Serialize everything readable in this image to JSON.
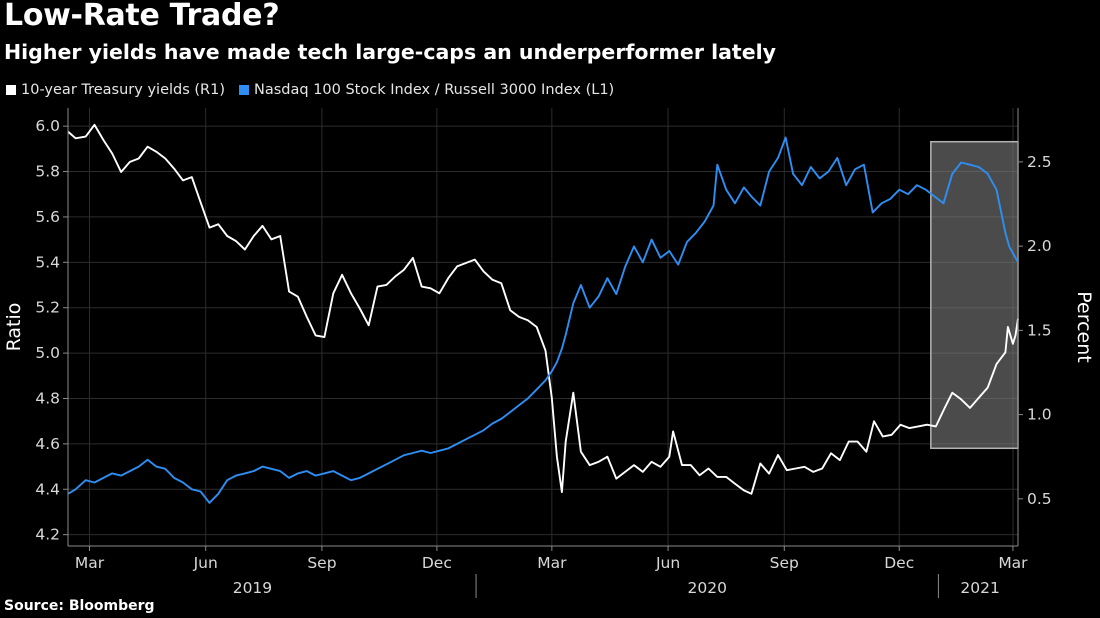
{
  "header": {
    "title": "Low-Rate Trade?",
    "subtitle": "Higher yields have made tech large-caps an underperformer lately"
  },
  "legend": [
    {
      "label": "10-year Treasury yields (R1)",
      "color": "#ffffff"
    },
    {
      "label": "Nasdaq 100 Stock Index / Russell 3000 Index (L1)",
      "color": "#2e8ef2"
    }
  ],
  "footer": {
    "source": "Source: Bloomberg"
  },
  "chart_data": {
    "type": "line",
    "x_tick_labels": [
      "Mar",
      "Jun",
      "Sep",
      "Dec",
      "Mar",
      "Jun",
      "Sep",
      "Dec",
      "Mar"
    ],
    "x_tick_dates": [
      "2019-03-01",
      "2019-06-01",
      "2019-09-01",
      "2019-12-01",
      "2020-03-01",
      "2020-06-01",
      "2020-09-01",
      "2020-12-01",
      "2021-03-01"
    ],
    "year_labels": [
      "2019",
      "2020",
      "2021"
    ],
    "xlim": [
      "2019-02-12",
      "2021-03-05"
    ],
    "ylabel_left": "Ratio",
    "ylabel_right": "Percent",
    "y_left_ticks": [
      4.2,
      4.4,
      4.6,
      4.8,
      5.0,
      5.2,
      5.4,
      5.6,
      5.8,
      6.0
    ],
    "y_left_lim": [
      4.15,
      6.08
    ],
    "y_right_ticks": [
      0.5,
      1.0,
      1.5,
      2.0,
      2.5
    ],
    "y_right_lim": [
      0.22,
      2.82
    ],
    "highlight": {
      "x_start": "2020-12-26",
      "x_end": "2021-03-05",
      "y_right_start": 0.8,
      "y_right_end": 2.62
    },
    "series": [
      {
        "name": "10-year Treasury yields (R1)",
        "axis": "right",
        "color": "#ffffff",
        "points": [
          [
            "2019-02-12",
            2.68
          ],
          [
            "2019-02-18",
            2.64
          ],
          [
            "2019-02-26",
            2.65
          ],
          [
            "2019-03-05",
            2.72
          ],
          [
            "2019-03-12",
            2.63
          ],
          [
            "2019-03-19",
            2.55
          ],
          [
            "2019-03-26",
            2.44
          ],
          [
            "2019-04-02",
            2.5
          ],
          [
            "2019-04-09",
            2.52
          ],
          [
            "2019-04-16",
            2.59
          ],
          [
            "2019-04-23",
            2.56
          ],
          [
            "2019-04-30",
            2.52
          ],
          [
            "2019-05-07",
            2.46
          ],
          [
            "2019-05-14",
            2.39
          ],
          [
            "2019-05-21",
            2.41
          ],
          [
            "2019-05-28",
            2.26
          ],
          [
            "2019-06-04",
            2.11
          ],
          [
            "2019-06-11",
            2.13
          ],
          [
            "2019-06-18",
            2.06
          ],
          [
            "2019-06-25",
            2.03
          ],
          [
            "2019-07-02",
            1.98
          ],
          [
            "2019-07-09",
            2.06
          ],
          [
            "2019-07-16",
            2.12
          ],
          [
            "2019-07-23",
            2.04
          ],
          [
            "2019-07-30",
            2.06
          ],
          [
            "2019-08-06",
            1.73
          ],
          [
            "2019-08-13",
            1.7
          ],
          [
            "2019-08-20",
            1.58
          ],
          [
            "2019-08-27",
            1.47
          ],
          [
            "2019-09-03",
            1.46
          ],
          [
            "2019-09-10",
            1.72
          ],
          [
            "2019-09-17",
            1.83
          ],
          [
            "2019-09-24",
            1.72
          ],
          [
            "2019-10-01",
            1.63
          ],
          [
            "2019-10-08",
            1.53
          ],
          [
            "2019-10-15",
            1.76
          ],
          [
            "2019-10-22",
            1.77
          ],
          [
            "2019-10-29",
            1.82
          ],
          [
            "2019-11-05",
            1.86
          ],
          [
            "2019-11-12",
            1.93
          ],
          [
            "2019-11-19",
            1.76
          ],
          [
            "2019-11-26",
            1.75
          ],
          [
            "2019-12-03",
            1.72
          ],
          [
            "2019-12-10",
            1.81
          ],
          [
            "2019-12-17",
            1.88
          ],
          [
            "2019-12-24",
            1.9
          ],
          [
            "2019-12-31",
            1.92
          ],
          [
            "2020-01-07",
            1.85
          ],
          [
            "2020-01-14",
            1.8
          ],
          [
            "2020-01-21",
            1.78
          ],
          [
            "2020-01-28",
            1.62
          ],
          [
            "2020-02-04",
            1.58
          ],
          [
            "2020-02-11",
            1.56
          ],
          [
            "2020-02-18",
            1.52
          ],
          [
            "2020-02-25",
            1.38
          ],
          [
            "2020-03-01",
            1.1
          ],
          [
            "2020-03-05",
            0.75
          ],
          [
            "2020-03-09",
            0.54
          ],
          [
            "2020-03-12",
            0.84
          ],
          [
            "2020-03-18",
            1.13
          ],
          [
            "2020-03-24",
            0.78
          ],
          [
            "2020-03-31",
            0.7
          ],
          [
            "2020-04-07",
            0.72
          ],
          [
            "2020-04-14",
            0.75
          ],
          [
            "2020-04-21",
            0.62
          ],
          [
            "2020-04-28",
            0.66
          ],
          [
            "2020-05-05",
            0.7
          ],
          [
            "2020-05-12",
            0.66
          ],
          [
            "2020-05-19",
            0.72
          ],
          [
            "2020-05-26",
            0.69
          ],
          [
            "2020-06-02",
            0.75
          ],
          [
            "2020-06-05",
            0.9
          ],
          [
            "2020-06-12",
            0.7
          ],
          [
            "2020-06-19",
            0.7
          ],
          [
            "2020-06-26",
            0.64
          ],
          [
            "2020-07-03",
            0.68
          ],
          [
            "2020-07-10",
            0.63
          ],
          [
            "2020-07-17",
            0.63
          ],
          [
            "2020-07-24",
            0.59
          ],
          [
            "2020-07-31",
            0.55
          ],
          [
            "2020-08-06",
            0.53
          ],
          [
            "2020-08-13",
            0.71
          ],
          [
            "2020-08-20",
            0.65
          ],
          [
            "2020-08-27",
            0.76
          ],
          [
            "2020-09-03",
            0.67
          ],
          [
            "2020-09-10",
            0.68
          ],
          [
            "2020-09-17",
            0.69
          ],
          [
            "2020-09-24",
            0.66
          ],
          [
            "2020-10-01",
            0.68
          ],
          [
            "2020-10-08",
            0.77
          ],
          [
            "2020-10-15",
            0.73
          ],
          [
            "2020-10-22",
            0.84
          ],
          [
            "2020-10-29",
            0.84
          ],
          [
            "2020-11-05",
            0.78
          ],
          [
            "2020-11-11",
            0.96
          ],
          [
            "2020-11-18",
            0.87
          ],
          [
            "2020-11-25",
            0.88
          ],
          [
            "2020-12-02",
            0.94
          ],
          [
            "2020-12-09",
            0.92
          ],
          [
            "2020-12-16",
            0.93
          ],
          [
            "2020-12-23",
            0.94
          ],
          [
            "2020-12-30",
            0.93
          ],
          [
            "2021-01-06",
            1.04
          ],
          [
            "2021-01-12",
            1.13
          ],
          [
            "2021-01-19",
            1.09
          ],
          [
            "2021-01-26",
            1.04
          ],
          [
            "2021-02-02",
            1.1
          ],
          [
            "2021-02-09",
            1.16
          ],
          [
            "2021-02-16",
            1.3
          ],
          [
            "2021-02-23",
            1.37
          ],
          [
            "2021-02-25",
            1.52
          ],
          [
            "2021-03-01",
            1.42
          ],
          [
            "2021-03-03",
            1.47
          ],
          [
            "2021-03-05",
            1.57
          ]
        ]
      },
      {
        "name": "Nasdaq 100 Stock Index / Russell 3000 Index (L1)",
        "axis": "left",
        "color": "#2e8ef2",
        "points": [
          [
            "2019-02-12",
            4.38
          ],
          [
            "2019-02-18",
            4.4
          ],
          [
            "2019-02-26",
            4.44
          ],
          [
            "2019-03-05",
            4.43
          ],
          [
            "2019-03-12",
            4.45
          ],
          [
            "2019-03-19",
            4.47
          ],
          [
            "2019-03-26",
            4.46
          ],
          [
            "2019-04-02",
            4.48
          ],
          [
            "2019-04-09",
            4.5
          ],
          [
            "2019-04-16",
            4.53
          ],
          [
            "2019-04-23",
            4.5
          ],
          [
            "2019-04-30",
            4.49
          ],
          [
            "2019-05-07",
            4.45
          ],
          [
            "2019-05-14",
            4.43
          ],
          [
            "2019-05-21",
            4.4
          ],
          [
            "2019-05-28",
            4.39
          ],
          [
            "2019-06-04",
            4.34
          ],
          [
            "2019-06-11",
            4.38
          ],
          [
            "2019-06-18",
            4.44
          ],
          [
            "2019-06-25",
            4.46
          ],
          [
            "2019-07-02",
            4.47
          ],
          [
            "2019-07-09",
            4.48
          ],
          [
            "2019-07-16",
            4.5
          ],
          [
            "2019-07-23",
            4.49
          ],
          [
            "2019-07-30",
            4.48
          ],
          [
            "2019-08-06",
            4.45
          ],
          [
            "2019-08-13",
            4.47
          ],
          [
            "2019-08-20",
            4.48
          ],
          [
            "2019-08-27",
            4.46
          ],
          [
            "2019-09-03",
            4.47
          ],
          [
            "2019-09-10",
            4.48
          ],
          [
            "2019-09-17",
            4.46
          ],
          [
            "2019-09-24",
            4.44
          ],
          [
            "2019-10-01",
            4.45
          ],
          [
            "2019-10-08",
            4.47
          ],
          [
            "2019-10-15",
            4.49
          ],
          [
            "2019-10-22",
            4.51
          ],
          [
            "2019-10-29",
            4.53
          ],
          [
            "2019-11-05",
            4.55
          ],
          [
            "2019-11-12",
            4.56
          ],
          [
            "2019-11-19",
            4.57
          ],
          [
            "2019-11-26",
            4.56
          ],
          [
            "2019-12-03",
            4.57
          ],
          [
            "2019-12-10",
            4.58
          ],
          [
            "2019-12-17",
            4.6
          ],
          [
            "2019-12-24",
            4.62
          ],
          [
            "2019-12-31",
            4.64
          ],
          [
            "2020-01-07",
            4.66
          ],
          [
            "2020-01-14",
            4.69
          ],
          [
            "2020-01-21",
            4.71
          ],
          [
            "2020-01-28",
            4.74
          ],
          [
            "2020-02-04",
            4.77
          ],
          [
            "2020-02-11",
            4.8
          ],
          [
            "2020-02-18",
            4.84
          ],
          [
            "2020-02-25",
            4.88
          ],
          [
            "2020-03-01",
            4.92
          ],
          [
            "2020-03-05",
            4.96
          ],
          [
            "2020-03-09",
            5.02
          ],
          [
            "2020-03-12",
            5.08
          ],
          [
            "2020-03-18",
            5.22
          ],
          [
            "2020-03-24",
            5.3
          ],
          [
            "2020-03-31",
            5.2
          ],
          [
            "2020-04-07",
            5.25
          ],
          [
            "2020-04-14",
            5.33
          ],
          [
            "2020-04-21",
            5.26
          ],
          [
            "2020-04-28",
            5.38
          ],
          [
            "2020-05-05",
            5.47
          ],
          [
            "2020-05-12",
            5.4
          ],
          [
            "2020-05-19",
            5.5
          ],
          [
            "2020-05-26",
            5.42
          ],
          [
            "2020-06-02",
            5.45
          ],
          [
            "2020-06-09",
            5.39
          ],
          [
            "2020-06-16",
            5.49
          ],
          [
            "2020-06-23",
            5.53
          ],
          [
            "2020-06-30",
            5.58
          ],
          [
            "2020-07-07",
            5.65
          ],
          [
            "2020-07-10",
            5.83
          ],
          [
            "2020-07-17",
            5.72
          ],
          [
            "2020-07-24",
            5.66
          ],
          [
            "2020-07-31",
            5.73
          ],
          [
            "2020-08-06",
            5.69
          ],
          [
            "2020-08-13",
            5.65
          ],
          [
            "2020-08-20",
            5.8
          ],
          [
            "2020-08-27",
            5.86
          ],
          [
            "2020-09-02",
            5.95
          ],
          [
            "2020-09-08",
            5.79
          ],
          [
            "2020-09-15",
            5.74
          ],
          [
            "2020-09-22",
            5.82
          ],
          [
            "2020-09-29",
            5.77
          ],
          [
            "2020-10-06",
            5.8
          ],
          [
            "2020-10-13",
            5.86
          ],
          [
            "2020-10-20",
            5.74
          ],
          [
            "2020-10-27",
            5.81
          ],
          [
            "2020-11-03",
            5.83
          ],
          [
            "2020-11-10",
            5.62
          ],
          [
            "2020-11-17",
            5.66
          ],
          [
            "2020-11-24",
            5.68
          ],
          [
            "2020-12-01",
            5.72
          ],
          [
            "2020-12-08",
            5.7
          ],
          [
            "2020-12-15",
            5.74
          ],
          [
            "2020-12-22",
            5.72
          ],
          [
            "2020-12-29",
            5.69
          ],
          [
            "2021-01-05",
            5.66
          ],
          [
            "2021-01-12",
            5.79
          ],
          [
            "2021-01-19",
            5.84
          ],
          [
            "2021-01-26",
            5.83
          ],
          [
            "2021-02-02",
            5.82
          ],
          [
            "2021-02-09",
            5.79
          ],
          [
            "2021-02-16",
            5.72
          ],
          [
            "2021-02-23",
            5.53
          ],
          [
            "2021-02-26",
            5.47
          ],
          [
            "2021-03-01",
            5.44
          ],
          [
            "2021-03-03",
            5.42
          ],
          [
            "2021-03-05",
            5.4
          ]
        ]
      }
    ]
  }
}
